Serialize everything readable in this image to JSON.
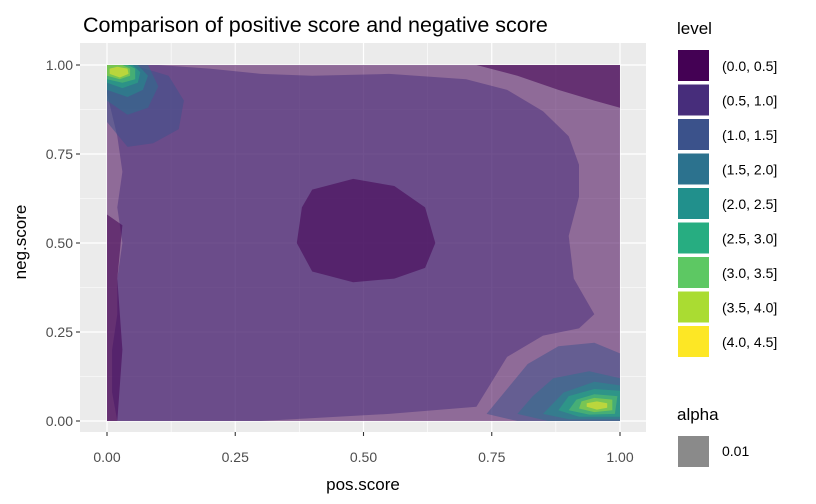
{
  "chart_data": {
    "type": "density-contour",
    "title": "Comparison of positive score and negative score",
    "xlabel": "pos.score",
    "ylabel": "neg.score",
    "xlim": [
      -0.05,
      1.0
    ],
    "ylim": [
      -0.02,
      1.0
    ],
    "x_ticks": [
      0.0,
      0.25,
      0.5,
      0.75,
      1.0
    ],
    "x_tick_labels": [
      "0.00",
      "0.25",
      "0.50",
      "0.75",
      "1.00"
    ],
    "y_ticks": [
      0.0,
      0.25,
      0.5,
      0.75,
      1.0
    ],
    "y_tick_labels": [
      "0.00",
      "0.25",
      "0.50",
      "0.75",
      "1.00"
    ],
    "grid": true,
    "legend_position": "right",
    "levels": [
      {
        "label": "(0.0, 0.5]",
        "color": "#440154"
      },
      {
        "label": "(0.5, 1.0]",
        "color": "#472D7B"
      },
      {
        "label": "(1.0, 1.5]",
        "color": "#3B528B"
      },
      {
        "label": "(1.5, 2.0]",
        "color": "#2C728E"
      },
      {
        "label": "(2.0, 2.5]",
        "color": "#21908C"
      },
      {
        "label": "(2.5, 3.0]",
        "color": "#27AD81"
      },
      {
        "label": "(3.0, 3.5]",
        "color": "#5DC863"
      },
      {
        "label": "(3.5, 4.0]",
        "color": "#AADC32"
      },
      {
        "label": "(4.0, 4.5]",
        "color": "#FDE725"
      }
    ],
    "alpha_legend": {
      "title": "alpha",
      "value": "0.01",
      "color": "#8a8a8a"
    },
    "legend_title": "level",
    "regions": [
      {
        "level": 0,
        "poly": [
          [
            0,
            0
          ],
          [
            1,
            0
          ],
          [
            1,
            1
          ],
          [
            0,
            1
          ]
        ]
      },
      {
        "level": 1,
        "poly": [
          [
            0.02,
            0.0
          ],
          [
            0.3,
            0.0
          ],
          [
            0.55,
            0.02
          ],
          [
            0.72,
            0.04
          ],
          [
            0.78,
            0.18
          ],
          [
            0.85,
            0.24
          ],
          [
            0.92,
            0.26
          ],
          [
            0.95,
            0.3
          ],
          [
            0.91,
            0.4
          ],
          [
            0.9,
            0.52
          ],
          [
            0.92,
            0.63
          ],
          [
            0.92,
            0.72
          ],
          [
            0.9,
            0.8
          ],
          [
            0.85,
            0.87
          ],
          [
            0.78,
            0.93
          ],
          [
            0.7,
            0.96
          ],
          [
            0.55,
            0.975
          ],
          [
            0.4,
            0.97
          ],
          [
            0.3,
            0.975
          ],
          [
            0.2,
            0.99
          ],
          [
            0.1,
            1.0
          ],
          [
            0.0,
            1.0
          ],
          [
            0.0,
            0.92
          ],
          [
            0.02,
            0.8
          ],
          [
            0.03,
            0.7
          ],
          [
            0.02,
            0.6
          ],
          [
            0.03,
            0.5
          ],
          [
            0.02,
            0.4
          ],
          [
            0.02,
            0.3
          ],
          [
            0.01,
            0.2
          ],
          [
            0.01,
            0.08
          ]
        ]
      },
      {
        "level": 2,
        "poly": [
          [
            0.0,
            0.84
          ],
          [
            0.04,
            0.77
          ],
          [
            0.09,
            0.78
          ],
          [
            0.14,
            0.82
          ],
          [
            0.15,
            0.9
          ],
          [
            0.12,
            0.97
          ],
          [
            0.05,
            1.0
          ],
          [
            0.0,
            1.0
          ]
        ]
      },
      {
        "level": 2,
        "poly": [
          [
            0.74,
            0.02
          ],
          [
            0.8,
            0.0
          ],
          [
            1.0,
            0.0
          ],
          [
            1.0,
            0.19
          ],
          [
            0.95,
            0.22
          ],
          [
            0.88,
            0.21
          ],
          [
            0.82,
            0.16
          ],
          [
            0.78,
            0.09
          ]
        ]
      },
      {
        "level": 3,
        "poly": [
          [
            0.0,
            0.9
          ],
          [
            0.04,
            0.86
          ],
          [
            0.08,
            0.88
          ],
          [
            0.1,
            0.94
          ],
          [
            0.08,
            1.0
          ],
          [
            0.0,
            1.0
          ]
        ]
      },
      {
        "level": 3,
        "poly": [
          [
            0.8,
            0.02
          ],
          [
            0.86,
            0.0
          ],
          [
            1.0,
            0.0
          ],
          [
            1.0,
            0.12
          ],
          [
            0.94,
            0.14
          ],
          [
            0.87,
            0.12
          ],
          [
            0.83,
            0.07
          ]
        ]
      },
      {
        "level": 4,
        "poly": [
          [
            0.0,
            0.93
          ],
          [
            0.04,
            0.91
          ],
          [
            0.07,
            0.93
          ],
          [
            0.08,
            0.97
          ],
          [
            0.06,
            1.0
          ],
          [
            0.0,
            1.0
          ]
        ]
      },
      {
        "level": 4,
        "poly": [
          [
            0.85,
            0.02
          ],
          [
            0.9,
            0.005
          ],
          [
            1.0,
            0.005
          ],
          [
            1.0,
            0.1
          ],
          [
            0.95,
            0.11
          ],
          [
            0.89,
            0.08
          ]
        ]
      },
      {
        "level": 5,
        "poly": [
          [
            0.0,
            0.95
          ],
          [
            0.03,
            0.935
          ],
          [
            0.06,
            0.95
          ],
          [
            0.065,
            0.98
          ],
          [
            0.05,
            1.0
          ],
          [
            0.0,
            1.0
          ]
        ]
      },
      {
        "level": 5,
        "poly": [
          [
            0.88,
            0.03
          ],
          [
            0.92,
            0.012
          ],
          [
            1.0,
            0.012
          ],
          [
            1.0,
            0.085
          ],
          [
            0.95,
            0.09
          ],
          [
            0.9,
            0.07
          ]
        ]
      },
      {
        "level": 6,
        "poly": [
          [
            0.0,
            0.96
          ],
          [
            0.03,
            0.95
          ],
          [
            0.055,
            0.96
          ],
          [
            0.055,
            0.99
          ],
          [
            0.04,
            1.0
          ],
          [
            0.0,
            1.0
          ]
        ]
      },
      {
        "level": 6,
        "poly": [
          [
            0.9,
            0.03
          ],
          [
            0.94,
            0.018
          ],
          [
            0.99,
            0.02
          ],
          [
            0.995,
            0.07
          ],
          [
            0.95,
            0.075
          ],
          [
            0.915,
            0.06
          ]
        ]
      },
      {
        "level": 7,
        "poly": [
          [
            0.0,
            0.97
          ],
          [
            0.025,
            0.96
          ],
          [
            0.045,
            0.97
          ],
          [
            0.045,
            0.99
          ],
          [
            0.03,
            1.0
          ],
          [
            0.0,
            1.0
          ]
        ]
      },
      {
        "level": 7,
        "poly": [
          [
            0.92,
            0.035
          ],
          [
            0.95,
            0.025
          ],
          [
            0.985,
            0.03
          ],
          [
            0.985,
            0.06
          ],
          [
            0.95,
            0.065
          ],
          [
            0.925,
            0.055
          ]
        ]
      },
      {
        "level": 8,
        "poly": [
          [
            0.005,
            0.975
          ],
          [
            0.025,
            0.965
          ],
          [
            0.042,
            0.975
          ],
          [
            0.04,
            0.99
          ],
          [
            0.02,
            0.995
          ],
          [
            0.005,
            0.99
          ]
        ]
      },
      {
        "level": 8,
        "poly": [
          [
            0.935,
            0.04
          ],
          [
            0.955,
            0.032
          ],
          [
            0.975,
            0.037
          ],
          [
            0.975,
            0.05
          ],
          [
            0.955,
            0.055
          ],
          [
            0.935,
            0.05
          ]
        ]
      },
      {
        "level": 0,
        "poly": [
          [
            0.4,
            0.65
          ],
          [
            0.48,
            0.68
          ],
          [
            0.56,
            0.66
          ],
          [
            0.62,
            0.6
          ],
          [
            0.64,
            0.5
          ],
          [
            0.62,
            0.43
          ],
          [
            0.56,
            0.4
          ],
          [
            0.48,
            0.39
          ],
          [
            0.4,
            0.42
          ],
          [
            0.37,
            0.5
          ],
          [
            0.38,
            0.6
          ]
        ]
      },
      {
        "level": 0,
        "poly": [
          [
            0.72,
            1.0
          ],
          [
            0.8,
            0.97
          ],
          [
            0.88,
            0.93
          ],
          [
            0.95,
            0.9
          ],
          [
            1.0,
            0.88
          ],
          [
            1.0,
            1.0
          ]
        ]
      },
      {
        "level": 0,
        "poly": [
          [
            0.0,
            0.0
          ],
          [
            0.02,
            0.0
          ],
          [
            0.03,
            0.2
          ],
          [
            0.02,
            0.4
          ],
          [
            0.03,
            0.55
          ],
          [
            0.0,
            0.58
          ]
        ]
      }
    ]
  }
}
